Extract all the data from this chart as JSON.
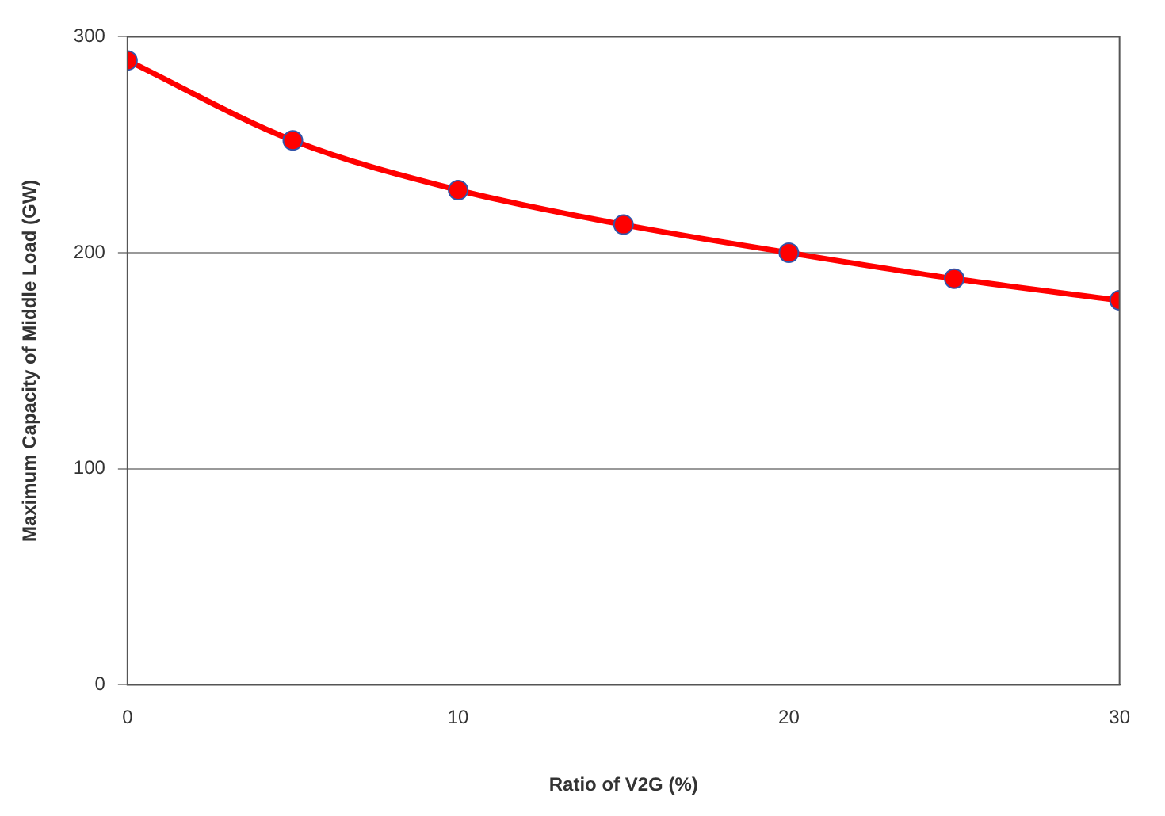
{
  "chart_data": {
    "type": "line",
    "xlabel": "Ratio of V2G (%)",
    "ylabel": "Maximum Capacity of Middle Load (GW)",
    "x": [
      0,
      5,
      10,
      15,
      20,
      25,
      30
    ],
    "series": [
      {
        "color": "#ff0000",
        "values": [
          289,
          252,
          229,
          213,
          200,
          188,
          178
        ]
      }
    ],
    "xlim": [
      0,
      30
    ],
    "xticks": [
      0,
      10,
      20,
      30
    ],
    "ylim": [
      0,
      300
    ],
    "yticks": [
      0,
      100,
      200,
      300
    ],
    "grid": "y",
    "legend": false,
    "marker": "circle",
    "line_style": "solid"
  }
}
